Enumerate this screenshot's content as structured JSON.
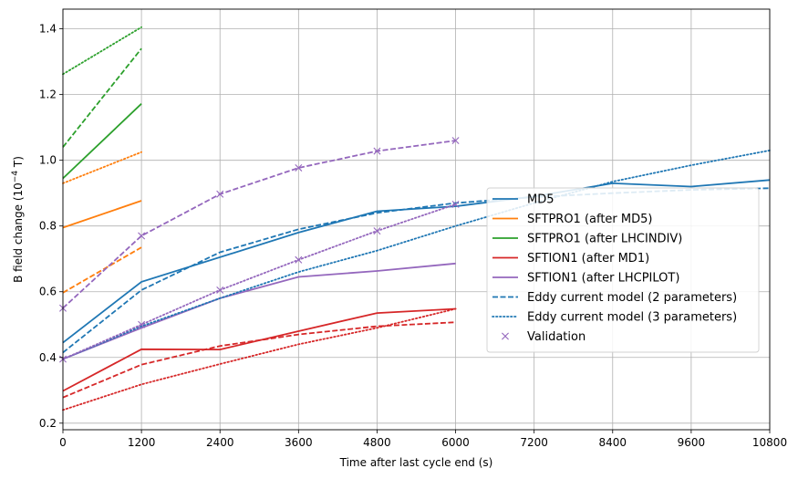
{
  "chart_data": {
    "type": "line",
    "xlabel": "Time after last cycle end (s)",
    "ylabel_main": "B field change (10",
    "ylabel_exp": "−4",
    "ylabel_unit": " T)",
    "xlim": [
      0,
      10800
    ],
    "ylim": [
      0.18,
      1.46
    ],
    "xticks": [
      0,
      1200,
      2400,
      3600,
      4800,
      6000,
      7200,
      8400,
      9600,
      10800
    ],
    "yticks": [
      0.2,
      0.4,
      0.6,
      0.8,
      1.0,
      1.2,
      1.4
    ],
    "grid": true,
    "legend_placement": "center-right",
    "series": [
      {
        "name": "MD5",
        "color": "#1f77b4",
        "style": "solid",
        "x": [
          0,
          1200,
          3600,
          4800,
          6000,
          7200,
          8400,
          9600,
          10800
        ],
        "y": [
          0.445,
          0.63,
          0.78,
          0.845,
          0.86,
          0.89,
          0.93,
          0.92,
          0.94
        ]
      },
      {
        "name": "SFTPRO1 (after MD5)",
        "color": "#ff7f0e",
        "style": "solid",
        "x": [
          0,
          1200
        ],
        "y": [
          0.795,
          0.877
        ]
      },
      {
        "name": "SFTPRO1 (after LHCINDIV)",
        "color": "#2ca02c",
        "style": "solid",
        "x": [
          0,
          1200
        ],
        "y": [
          0.945,
          1.172
        ]
      },
      {
        "name": "SFTION1 (after MD1)",
        "color": "#d62728",
        "style": "solid",
        "x": [
          0,
          1200,
          2400,
          3600,
          4800,
          6000
        ],
        "y": [
          0.298,
          0.425,
          0.424,
          0.48,
          0.535,
          0.548
        ]
      },
      {
        "name": "SFTION1 (after LHCPILOT)",
        "color": "#9467bd",
        "style": "solid",
        "x": [
          0,
          1200,
          2400,
          3600,
          4800,
          6000
        ],
        "y": [
          0.395,
          0.49,
          0.58,
          0.645,
          0.663,
          0.686
        ]
      },
      {
        "name": "",
        "color": "#1f77b4",
        "style": "dashed",
        "x": [
          0,
          1200,
          2400,
          3600,
          4800,
          6000,
          7200,
          8400,
          9600,
          10800
        ],
        "y": [
          0.415,
          0.605,
          0.72,
          0.79,
          0.84,
          0.87,
          0.888,
          0.9,
          0.91,
          0.915
        ]
      },
      {
        "name": "",
        "color": "#1f77b4",
        "style": "dotted",
        "x": [
          0,
          1200,
          2400,
          3600,
          4800,
          6000,
          7200,
          8400,
          9600,
          10800
        ],
        "y": [
          0.395,
          0.495,
          0.58,
          0.66,
          0.725,
          0.8,
          0.87,
          0.935,
          0.985,
          1.03
        ]
      },
      {
        "name": "",
        "color": "#ff7f0e",
        "style": "dashed",
        "x": [
          0,
          1200
        ],
        "y": [
          0.597,
          0.735
        ]
      },
      {
        "name": "",
        "color": "#ff7f0e",
        "style": "dotted",
        "x": [
          0,
          1200
        ],
        "y": [
          0.93,
          1.025
        ]
      },
      {
        "name": "",
        "color": "#2ca02c",
        "style": "dashed",
        "x": [
          0,
          1200
        ],
        "y": [
          1.04,
          1.34
        ]
      },
      {
        "name": "",
        "color": "#2ca02c",
        "style": "dotted",
        "x": [
          0,
          1200
        ],
        "y": [
          1.262,
          1.405
        ]
      },
      {
        "name": "",
        "color": "#d62728",
        "style": "dashed",
        "x": [
          0,
          1200,
          2400,
          3600,
          4800,
          6000
        ],
        "y": [
          0.278,
          0.378,
          0.435,
          0.47,
          0.495,
          0.507
        ]
      },
      {
        "name": "",
        "color": "#d62728",
        "style": "dotted",
        "x": [
          0,
          1200,
          2400,
          3600,
          4800,
          6000
        ],
        "y": [
          0.24,
          0.318,
          0.38,
          0.44,
          0.49,
          0.548
        ]
      },
      {
        "name": "",
        "color": "#9467bd",
        "style": "dashed",
        "x": [
          0,
          1200,
          2400,
          3600,
          4800,
          6000
        ],
        "y": [
          0.55,
          0.77,
          0.897,
          0.977,
          1.028,
          1.06
        ]
      },
      {
        "name": "",
        "color": "#9467bd",
        "style": "dotted",
        "x": [
          0,
          1200,
          2400,
          3600,
          4800,
          6000
        ],
        "y": [
          0.395,
          0.5,
          0.605,
          0.697,
          0.785,
          0.866
        ]
      }
    ],
    "validation": {
      "name": "Validation",
      "color": "#9467bd",
      "x": [
        0,
        1200,
        2400,
        3600,
        4800,
        6000
      ],
      "y": [
        0.55,
        0.77,
        0.897,
        0.977,
        1.028,
        1.06
      ],
      "x2": [
        0,
        1200,
        2400,
        3600,
        4800,
        6000
      ],
      "y2": [
        0.395,
        0.5,
        0.605,
        0.697,
        0.785,
        0.866
      ]
    },
    "legend": [
      {
        "label": "MD5",
        "color": "#1f77b4",
        "style": "solid"
      },
      {
        "label": "SFTPRO1 (after MD5)",
        "color": "#ff7f0e",
        "style": "solid"
      },
      {
        "label": "SFTPRO1 (after LHCINDIV)",
        "color": "#2ca02c",
        "style": "solid"
      },
      {
        "label": "SFTION1 (after MD1)",
        "color": "#d62728",
        "style": "solid"
      },
      {
        "label": "SFTION1 (after LHCPILOT)",
        "color": "#9467bd",
        "style": "solid"
      },
      {
        "label": "Eddy current model (2 parameters)",
        "color": "#1f77b4",
        "style": "dashed"
      },
      {
        "label": "Eddy current model (3 parameters)",
        "color": "#1f77b4",
        "style": "dotted"
      },
      {
        "label": "Validation",
        "color": "#9467bd",
        "style": "marker-x"
      }
    ]
  }
}
